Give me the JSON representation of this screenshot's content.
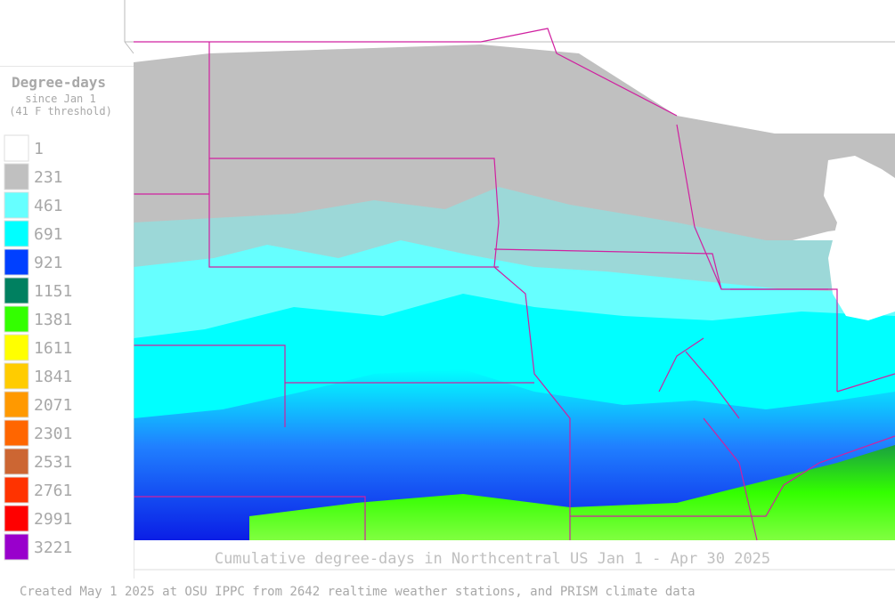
{
  "legend": {
    "title": "Degree-days",
    "subtitle": [
      "since Jan 1",
      "(41 F threshold)"
    ],
    "items": [
      {
        "value": 1,
        "color": "#ffffff"
      },
      {
        "value": 231,
        "color": "#c0c0c0"
      },
      {
        "value": 461,
        "color": "#66ffff"
      },
      {
        "value": 691,
        "color": "#00ffff"
      },
      {
        "value": 921,
        "color": "#0040ff"
      },
      {
        "value": 1151,
        "color": "#008060"
      },
      {
        "value": 1381,
        "color": "#33ff00"
      },
      {
        "value": 1611,
        "color": "#ffff00"
      },
      {
        "value": 1841,
        "color": "#ffcc00"
      },
      {
        "value": 2071,
        "color": "#ff9900"
      },
      {
        "value": 2301,
        "color": "#ff6600"
      },
      {
        "value": 2531,
        "color": "#cc6633"
      },
      {
        "value": 2761,
        "color": "#ff3300"
      },
      {
        "value": 2991,
        "color": "#ff0000"
      },
      {
        "value": 3221,
        "color": "#9900cc"
      }
    ]
  },
  "map": {
    "title": "Cumulative degree-days in Northcentral US Jan 1 - Apr 30 2025"
  },
  "footer": "Created May 1 2025 at OSU IPPC from 2642 realtime weather stations, and PRISM climate data"
}
